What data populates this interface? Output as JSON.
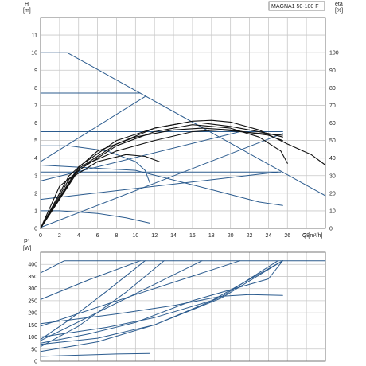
{
  "chart_data": [
    {
      "type": "line",
      "title": "MAGNA1 50-100 F",
      "xlabel": "Q [m³/h]",
      "ylabel": "H",
      "ylabel_unit": "[m]",
      "y2label": "eta",
      "y2label_unit": "[%]",
      "xlim": [
        0,
        30
      ],
      "ylim": [
        0,
        12
      ],
      "y2lim": [
        0,
        120
      ],
      "x_ticks": [
        0,
        2,
        4,
        6,
        8,
        10,
        12,
        14,
        16,
        18,
        20,
        22,
        24,
        26,
        28
      ],
      "y_ticks": [
        0,
        1,
        2,
        3,
        4,
        5,
        6,
        7,
        8,
        9,
        10,
        11
      ],
      "y2_ticks": [
        0,
        10,
        20,
        30,
        40,
        50,
        60,
        70,
        80,
        90,
        100
      ],
      "grid": true,
      "colors": {
        "curves": "#2b5b8e",
        "efficiency": "#111111",
        "grid": "#c8c8c8"
      },
      "series": [
        {
          "role": "head",
          "points": [
            [
              0,
              10
            ],
            [
              2.8,
              10
            ],
            [
              30,
              1.85
            ]
          ]
        },
        {
          "role": "head",
          "points": [
            [
              0,
              7.7
            ],
            [
              10.5,
              7.7
            ]
          ]
        },
        {
          "role": "head",
          "points": [
            [
              0,
              5.5
            ],
            [
              25.5,
              5.5
            ]
          ]
        },
        {
          "role": "head",
          "points": [
            [
              0,
              3.2
            ],
            [
              25.3,
              3.2
            ]
          ]
        },
        {
          "role": "head",
          "points": [
            [
              0,
              4.7
            ],
            [
              3,
              4.7
            ],
            [
              7,
              4.4
            ],
            [
              10,
              3.8
            ],
            [
              11,
              3.3
            ],
            [
              11.5,
              2.6
            ]
          ]
        },
        {
          "role": "head",
          "points": [
            [
              0,
              1
            ],
            [
              2,
              1
            ],
            [
              6,
              0.85
            ],
            [
              9,
              0.6
            ],
            [
              11.5,
              0.3
            ]
          ]
        },
        {
          "role": "system",
          "points": [
            [
              0,
              3.8
            ],
            [
              11,
              7.5
            ]
          ]
        },
        {
          "role": "system",
          "points": [
            [
              0,
              2.7
            ],
            [
              21,
              5.5
            ]
          ]
        },
        {
          "role": "system",
          "points": [
            [
              0,
              1.65
            ],
            [
              25,
              3.2
            ]
          ]
        },
        {
          "role": "system",
          "points": [
            [
              0,
              0.05
            ],
            [
              25.5,
              5.4
            ]
          ]
        },
        {
          "role": "system",
          "points": [
            [
              0,
              3.6
            ],
            [
              10,
              3.3
            ],
            [
              18,
              2.2
            ],
            [
              23,
              1.5
            ],
            [
              25.5,
              1.3
            ]
          ]
        },
        {
          "role": "eta",
          "points": [
            [
              0,
              0
            ],
            [
              4,
              34
            ],
            [
              8,
              48
            ],
            [
              12,
              57
            ],
            [
              16,
              61
            ],
            [
              18,
              61.5
            ],
            [
              20,
              60.5
            ],
            [
              23,
              56
            ],
            [
              26,
              48
            ],
            [
              28.5,
              42
            ],
            [
              30,
              36
            ]
          ]
        },
        {
          "role": "eta",
          "points": [
            [
              0,
              0
            ],
            [
              4,
              33
            ],
            [
              8,
              47
            ],
            [
              12,
              55
            ],
            [
              16,
              59
            ],
            [
              20,
              57
            ],
            [
              23,
              52
            ],
            [
              25.3,
              44
            ],
            [
              26,
              37
            ]
          ]
        },
        {
          "role": "eta",
          "points": [
            [
              0,
              0
            ],
            [
              4,
              35
            ],
            [
              8,
              50
            ],
            [
              12,
              57
            ],
            [
              15,
              60
            ],
            [
              17,
              60
            ],
            [
              20,
              58
            ],
            [
              24,
              54
            ],
            [
              25.5,
              52
            ]
          ]
        },
        {
          "role": "eta",
          "points": [
            [
              0,
              0
            ],
            [
              3,
              30
            ],
            [
              6,
              44
            ],
            [
              10,
              52
            ],
            [
              14,
              56
            ],
            [
              17,
              57
            ],
            [
              20,
              56
            ],
            [
              24,
              53
            ],
            [
              25.5,
              50
            ]
          ]
        },
        {
          "role": "eta",
          "points": [
            [
              0,
              0
            ],
            [
              2,
              24
            ],
            [
              5,
              37
            ],
            [
              8,
              44
            ],
            [
              12,
              50
            ],
            [
              16,
              55
            ],
            [
              19,
              56
            ],
            [
              22,
              54.5
            ],
            [
              25.5,
              53
            ]
          ]
        },
        {
          "role": "eta",
          "points": [
            [
              0,
              0
            ],
            [
              3,
              28
            ],
            [
              6,
              38
            ],
            [
              9,
              42
            ],
            [
              11,
              41
            ],
            [
              12.5,
              38
            ]
          ]
        }
      ]
    },
    {
      "type": "line",
      "title": "",
      "xlabel": "",
      "ylabel": "P1",
      "ylabel_unit": "[W]",
      "xlim": [
        0,
        30
      ],
      "ylim": [
        0,
        450
      ],
      "y_ticks": [
        0,
        50,
        100,
        150,
        200,
        250,
        300,
        350,
        400
      ],
      "grid": true,
      "series": [
        {
          "role": "power",
          "points": [
            [
              0,
              365
            ],
            [
              2.5,
              415
            ],
            [
              30,
              415
            ]
          ]
        },
        {
          "role": "power",
          "points": [
            [
              0,
              255
            ],
            [
              5,
              335
            ],
            [
              10.5,
              415
            ]
          ]
        },
        {
          "role": "power",
          "points": [
            [
              0,
              85
            ],
            [
              8,
              240
            ],
            [
              17,
              415
            ]
          ]
        },
        {
          "role": "power",
          "points": [
            [
              0,
              145
            ],
            [
              10,
              275
            ],
            [
              21,
              415
            ]
          ]
        },
        {
          "role": "power",
          "points": [
            [
              0,
              155
            ],
            [
              8,
              195
            ],
            [
              14,
              230
            ],
            [
              19,
              268
            ],
            [
              22,
              275
            ],
            [
              25.5,
              272
            ]
          ]
        },
        {
          "role": "power",
          "points": [
            [
              0,
              70
            ],
            [
              6,
              95
            ],
            [
              12,
              150
            ],
            [
              19,
              265
            ],
            [
              25,
              415
            ]
          ]
        },
        {
          "role": "power",
          "points": [
            [
              0,
              40
            ],
            [
              6,
              80
            ],
            [
              12,
              150
            ],
            [
              19,
              260
            ],
            [
              25.5,
              415
            ]
          ]
        },
        {
          "role": "power",
          "points": [
            [
              0,
              100
            ],
            [
              7,
              140
            ],
            [
              12,
              180
            ],
            [
              18,
              250
            ],
            [
              25.5,
              415
            ]
          ]
        },
        {
          "role": "power",
          "points": [
            [
              0,
              90
            ],
            [
              3,
              170
            ],
            [
              7,
              290
            ],
            [
              11,
              415
            ]
          ]
        },
        {
          "role": "power",
          "points": [
            [
              0,
              60
            ],
            [
              4,
              145
            ],
            [
              9,
              285
            ],
            [
              13,
              415
            ]
          ]
        },
        {
          "role": "power",
          "points": [
            [
              0,
              20
            ],
            [
              4,
              25
            ],
            [
              8,
              30
            ],
            [
              11.5,
              32
            ]
          ]
        },
        {
          "role": "power",
          "points": [
            [
              0,
              75
            ],
            [
              5,
              112
            ],
            [
              10,
              160
            ],
            [
              16,
              250
            ],
            [
              24,
              340
            ],
            [
              25.5,
              415
            ]
          ]
        }
      ]
    }
  ]
}
